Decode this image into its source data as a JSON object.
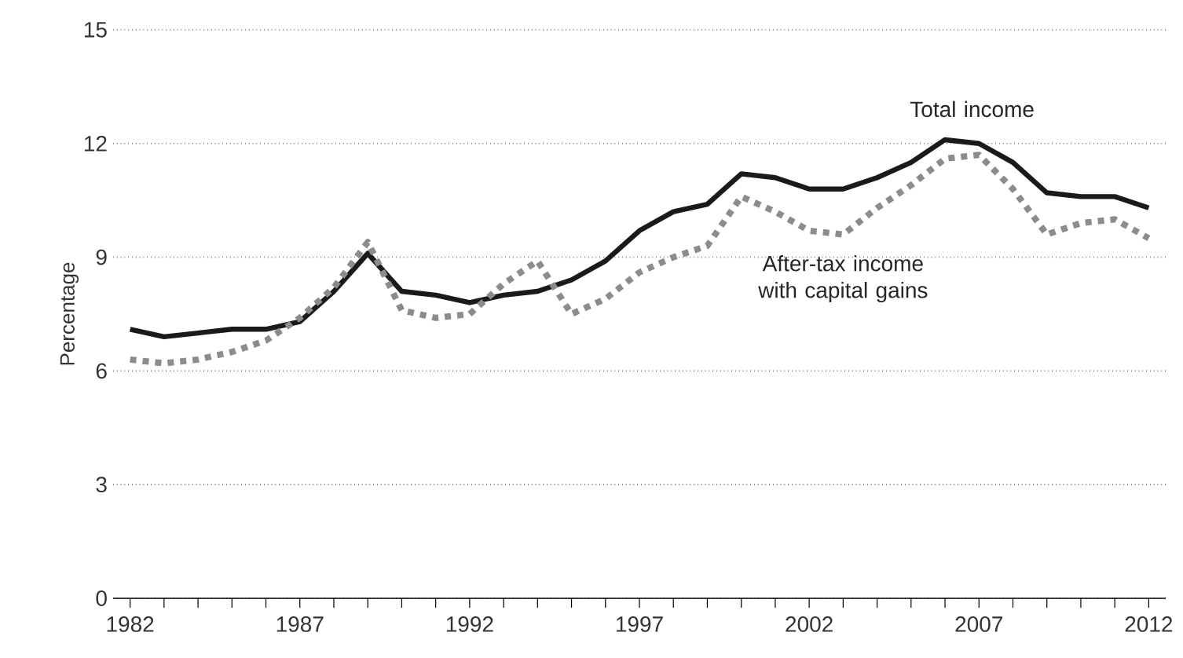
{
  "chart_data": {
    "type": "line",
    "ylabel": "Percentage",
    "x": [
      1982,
      1983,
      1984,
      1985,
      1986,
      1987,
      1988,
      1989,
      1990,
      1991,
      1992,
      1993,
      1994,
      1995,
      1996,
      1997,
      1998,
      1999,
      2000,
      2001,
      2002,
      2003,
      2004,
      2005,
      2006,
      2007,
      2008,
      2009,
      2010,
      2011,
      2012
    ],
    "series": [
      {
        "name": "Total income",
        "color": "#1a1a1a",
        "line_style": "solid",
        "values": [
          7.1,
          6.9,
          7.0,
          7.1,
          7.1,
          7.3,
          8.1,
          9.1,
          8.1,
          8.0,
          7.8,
          8.0,
          8.1,
          8.4,
          8.9,
          9.7,
          10.2,
          10.4,
          11.2,
          11.1,
          10.8,
          10.8,
          11.1,
          11.5,
          12.1,
          12.0,
          11.5,
          10.7,
          10.6,
          10.6,
          10.3
        ]
      },
      {
        "name": "After-tax income with capital gains",
        "color": "#8c8c8c",
        "line_style": "dotted",
        "values": [
          6.3,
          6.2,
          6.3,
          6.5,
          6.8,
          7.4,
          8.2,
          9.4,
          7.6,
          7.4,
          7.5,
          8.3,
          8.9,
          7.5,
          7.9,
          8.6,
          9.0,
          9.3,
          10.6,
          10.2,
          9.7,
          9.6,
          10.3,
          10.9,
          11.6,
          11.7,
          10.8,
          9.6,
          9.9,
          10.0,
          9.5
        ]
      }
    ],
    "xlim": [
      1981.5,
      2012.5
    ],
    "ylim": [
      0,
      15
    ],
    "xticks": [
      1982,
      {
        "value": 1983,
        "label": null
      },
      {
        "value": 1984,
        "label": null
      },
      {
        "value": 1985,
        "label": null
      },
      {
        "value": 1986,
        "label": null
      },
      1987,
      {
        "value": 1988,
        "label": null
      },
      {
        "value": 1989,
        "label": null
      },
      {
        "value": 1990,
        "label": null
      },
      {
        "value": 1991,
        "label": null
      },
      1992,
      {
        "value": 1993,
        "label": null
      },
      {
        "value": 1994,
        "label": null
      },
      {
        "value": 1995,
        "label": null
      },
      {
        "value": 1996,
        "label": null
      },
      1997,
      {
        "value": 1998,
        "label": null
      },
      {
        "value": 1999,
        "label": null
      },
      {
        "value": 2000,
        "label": null
      },
      {
        "value": 2001,
        "label": null
      },
      2002,
      {
        "value": 2003,
        "label": null
      },
      {
        "value": 2004,
        "label": null
      },
      {
        "value": 2005,
        "label": null
      },
      {
        "value": 2006,
        "label": null
      },
      2007,
      {
        "value": 2008,
        "label": null
      },
      {
        "value": 2009,
        "label": null
      },
      {
        "value": 2010,
        "label": null
      },
      {
        "value": 2011,
        "label": null
      },
      2012
    ],
    "yticks": [
      0,
      3,
      6,
      9,
      12,
      15
    ],
    "grid": "y",
    "legend": false,
    "marker": "none"
  }
}
